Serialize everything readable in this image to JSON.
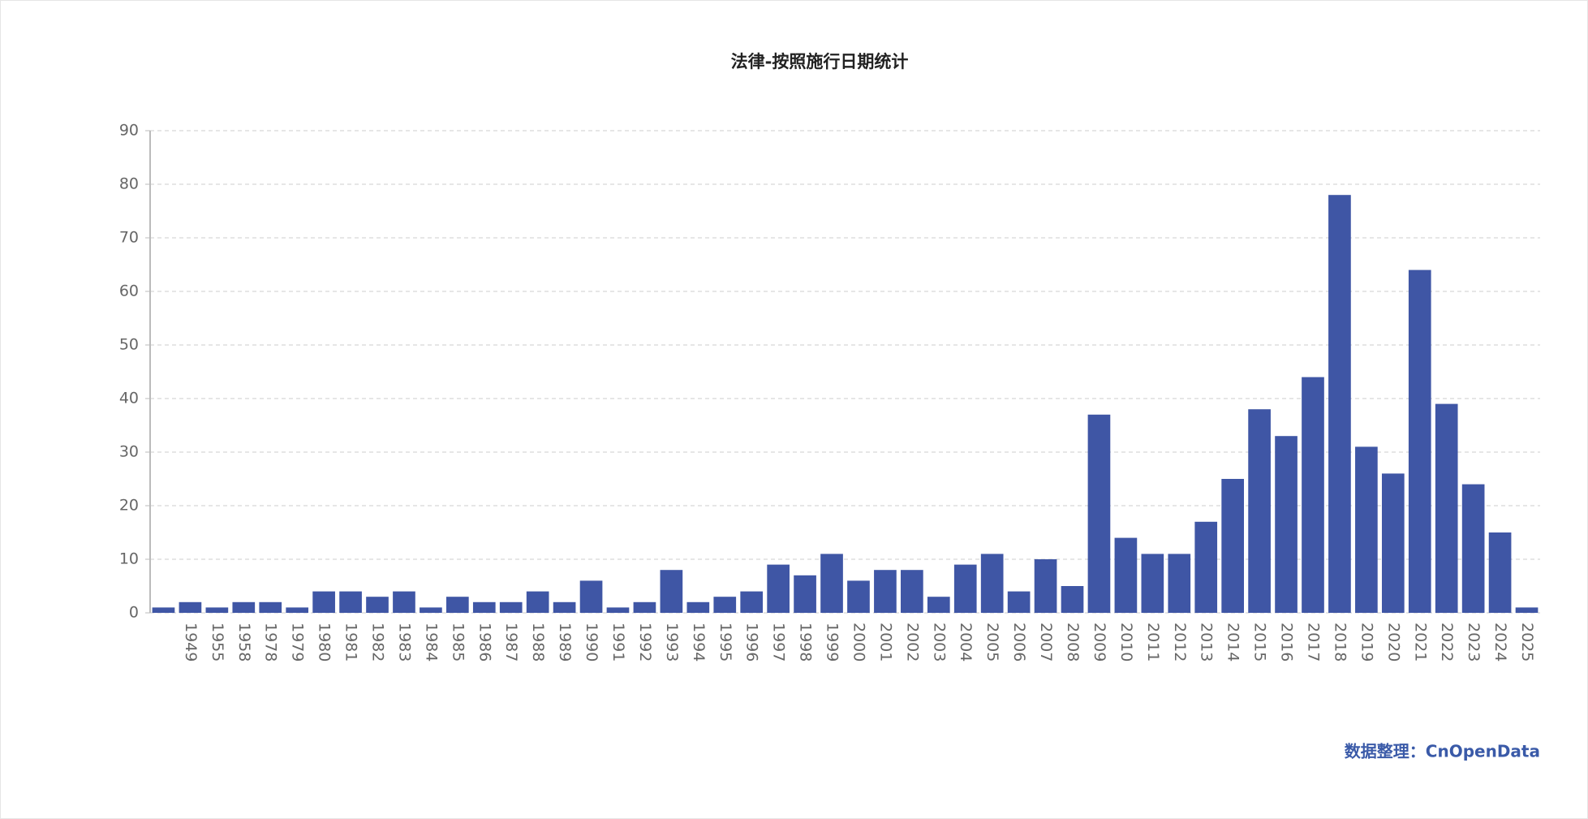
{
  "chart_data": {
    "type": "bar",
    "title": "法律-按照施行日期统计",
    "source": "数据整理：CnOpenData",
    "categories": [
      null,
      "1949",
      "1955",
      "1958",
      "1978",
      "1979",
      "1980",
      "1981",
      "1982",
      "1983",
      "1984",
      "1985",
      "1986",
      "1987",
      "1988",
      "1989",
      "1990",
      "1991",
      "1992",
      "1993",
      "1994",
      "1995",
      "1996",
      "1997",
      "1998",
      "1999",
      "2000",
      "2001",
      "2002",
      "2003",
      "2004",
      "2005",
      "2006",
      "2007",
      "2008",
      "2009",
      "2010",
      "2011",
      "2012",
      "2013",
      "2014",
      "2015",
      "2016",
      "2017",
      "2018",
      "2019",
      "2020",
      "2021",
      "2022",
      "2023",
      "2024",
      "2025"
    ],
    "values": [
      1,
      2,
      1,
      2,
      2,
      1,
      4,
      4,
      3,
      4,
      1,
      3,
      2,
      2,
      4,
      2,
      6,
      1,
      2,
      8,
      2,
      3,
      4,
      9,
      7,
      11,
      6,
      8,
      8,
      3,
      9,
      11,
      4,
      10,
      5,
      37,
      14,
      11,
      11,
      17,
      25,
      38,
      33,
      44,
      78,
      31,
      26,
      64,
      39,
      24,
      15,
      1
    ],
    "color": "#3f56a5",
    "ylim": [
      0,
      90
    ],
    "yticks": [
      0,
      10,
      20,
      30,
      40,
      50,
      60,
      70,
      80,
      90
    ],
    "grid": true
  }
}
